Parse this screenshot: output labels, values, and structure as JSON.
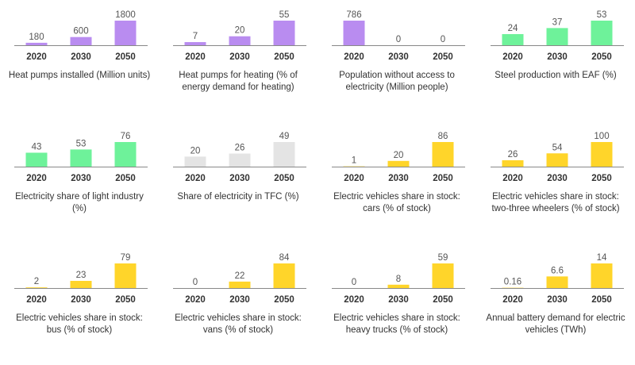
{
  "colors": {
    "purple": "#b98cf0",
    "green": "#6ef29a",
    "gray": "#e4e4e4",
    "yellow": "#ffd52a",
    "axis": "#888888"
  },
  "chart_data": [
    {
      "type": "bar",
      "title": "Heat pumps installed (Million units)",
      "categories": [
        "2020",
        "2030",
        "2050"
      ],
      "values": [
        180,
        600,
        1800
      ],
      "value_labels": [
        "180",
        "600",
        "1800"
      ],
      "color": "purple"
    },
    {
      "type": "bar",
      "title": "Heat pumps for heating (% of energy demand for heating)",
      "categories": [
        "2020",
        "2030",
        "2050"
      ],
      "values": [
        7,
        20,
        55
      ],
      "value_labels": [
        "7",
        "20",
        "55"
      ],
      "color": "purple"
    },
    {
      "type": "bar",
      "title": "Population without access to electricity (Million people)",
      "categories": [
        "2020",
        "2030",
        "2050"
      ],
      "values": [
        786,
        0,
        0
      ],
      "value_labels": [
        "786",
        "0",
        "0"
      ],
      "color": "purple"
    },
    {
      "type": "bar",
      "title": "Steel production with EAF (%)",
      "categories": [
        "2020",
        "2030",
        "2050"
      ],
      "values": [
        24,
        37,
        53
      ],
      "value_labels": [
        "24",
        "37",
        "53"
      ],
      "color": "green"
    },
    {
      "type": "bar",
      "title": "Electricity share of light industry (%)",
      "categories": [
        "2020",
        "2030",
        "2050"
      ],
      "values": [
        43,
        53,
        76
      ],
      "value_labels": [
        "43",
        "53",
        "76"
      ],
      "color": "green"
    },
    {
      "type": "bar",
      "title": "Share of electricity in TFC (%)",
      "categories": [
        "2020",
        "2030",
        "2050"
      ],
      "values": [
        20,
        26,
        49
      ],
      "value_labels": [
        "20",
        "26",
        "49"
      ],
      "color": "gray"
    },
    {
      "type": "bar",
      "title": "Electric vehicles share in stock: cars (% of stock)",
      "categories": [
        "2020",
        "2030",
        "2050"
      ],
      "values": [
        1,
        20,
        86
      ],
      "value_labels": [
        "1",
        "20",
        "86"
      ],
      "color": "yellow"
    },
    {
      "type": "bar",
      "title": "Electric vehicles share in stock: two-three wheelers (% of stock)",
      "categories": [
        "2020",
        "2030",
        "2050"
      ],
      "values": [
        26,
        54,
        100
      ],
      "value_labels": [
        "26",
        "54",
        "100"
      ],
      "color": "yellow"
    },
    {
      "type": "bar",
      "title": "Electric vehicles share in stock: bus (% of stock)",
      "categories": [
        "2020",
        "2030",
        "2050"
      ],
      "values": [
        2,
        23,
        79
      ],
      "value_labels": [
        "2",
        "23",
        "79"
      ],
      "color": "yellow"
    },
    {
      "type": "bar",
      "title": "Electric vehicles share in stock: vans (% of stock)",
      "categories": [
        "2020",
        "2030",
        "2050"
      ],
      "values": [
        0,
        22,
        84
      ],
      "value_labels": [
        "0",
        "22",
        "84"
      ],
      "color": "yellow"
    },
    {
      "type": "bar",
      "title": "Electric vehicles share in stock: heavy trucks (% of stock)",
      "categories": [
        "2020",
        "2030",
        "2050"
      ],
      "values": [
        0,
        8,
        59
      ],
      "value_labels": [
        "0",
        "8",
        "59"
      ],
      "color": "yellow"
    },
    {
      "type": "bar",
      "title": "Annual battery demand for electric vehicles (TWh)",
      "categories": [
        "2020",
        "2030",
        "2050"
      ],
      "values": [
        0.16,
        6.6,
        14
      ],
      "value_labels": [
        "0.16",
        "6.6",
        "14"
      ],
      "color": "yellow"
    }
  ]
}
